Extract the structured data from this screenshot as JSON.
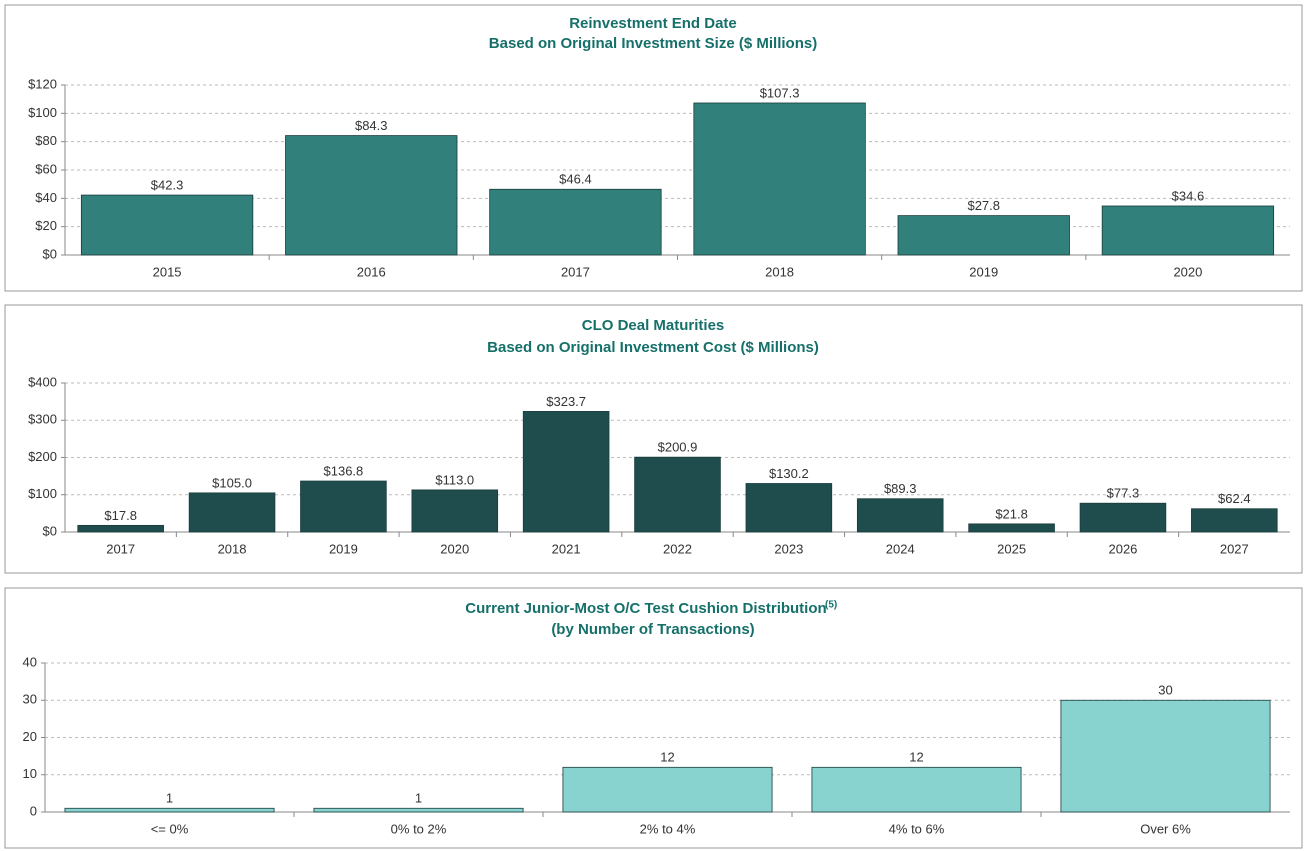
{
  "chart_data": [
    {
      "type": "bar",
      "title": "Reinvestment End Date",
      "subtitle": "Based on Original Investment Size ($ Millions)",
      "categories": [
        "2015",
        "2016",
        "2017",
        "2018",
        "2019",
        "2020"
      ],
      "values": [
        42.3,
        84.3,
        46.4,
        107.3,
        27.8,
        34.6
      ],
      "value_labels": [
        "$42.3",
        "$84.3",
        "$46.4",
        "$107.3",
        "$27.8",
        "$34.6"
      ],
      "color": "#31807c",
      "ylim": [
        0,
        120
      ],
      "yticks": [
        {
          "value": 0,
          "label": "$0"
        },
        {
          "value": 20,
          "label": "$20"
        },
        {
          "value": 40,
          "label": "$40"
        },
        {
          "value": 60,
          "label": "$60"
        },
        {
          "value": 80,
          "label": "$80"
        },
        {
          "value": 100,
          "label": "$100"
        },
        {
          "value": 120,
          "label": "$120"
        }
      ],
      "grid": true
    },
    {
      "type": "bar",
      "title": "CLO Deal Maturities",
      "subtitle": "Based on Original Investment Cost ($ Millions)",
      "categories": [
        "2017",
        "2018",
        "2019",
        "2020",
        "2021",
        "2022",
        "2023",
        "2024",
        "2025",
        "2026",
        "2027"
      ],
      "values": [
        17.8,
        105.0,
        136.8,
        113.0,
        323.7,
        200.9,
        130.2,
        89.3,
        21.8,
        77.3,
        62.4
      ],
      "value_labels": [
        "$17.8",
        "$105.0",
        "$136.8",
        "$113.0",
        "$323.7",
        "$200.9",
        "$130.2",
        "$89.3",
        "$21.8",
        "$77.3",
        "$62.4"
      ],
      "color": "#1f4d4d",
      "ylim": [
        0,
        400
      ],
      "yticks": [
        {
          "value": 0,
          "label": "$0"
        },
        {
          "value": 100,
          "label": "$100"
        },
        {
          "value": 200,
          "label": "$200"
        },
        {
          "value": 300,
          "label": "$300"
        },
        {
          "value": 400,
          "label": "$400"
        }
      ],
      "grid": true
    },
    {
      "type": "bar",
      "title": "Current Junior-Most O/C Test Cushion Distribution",
      "title_superscript": "(5)",
      "subtitle": "(by Number of Transactions)",
      "categories": [
        "<= 0%",
        "0% to 2%",
        "2% to 4%",
        "4% to 6%",
        "Over 6%"
      ],
      "values": [
        1,
        1,
        12,
        12,
        30
      ],
      "color": "#88d3cf",
      "ylim": [
        0,
        40
      ],
      "yticks": [
        0,
        10,
        20,
        30,
        40
      ],
      "grid": true
    }
  ]
}
